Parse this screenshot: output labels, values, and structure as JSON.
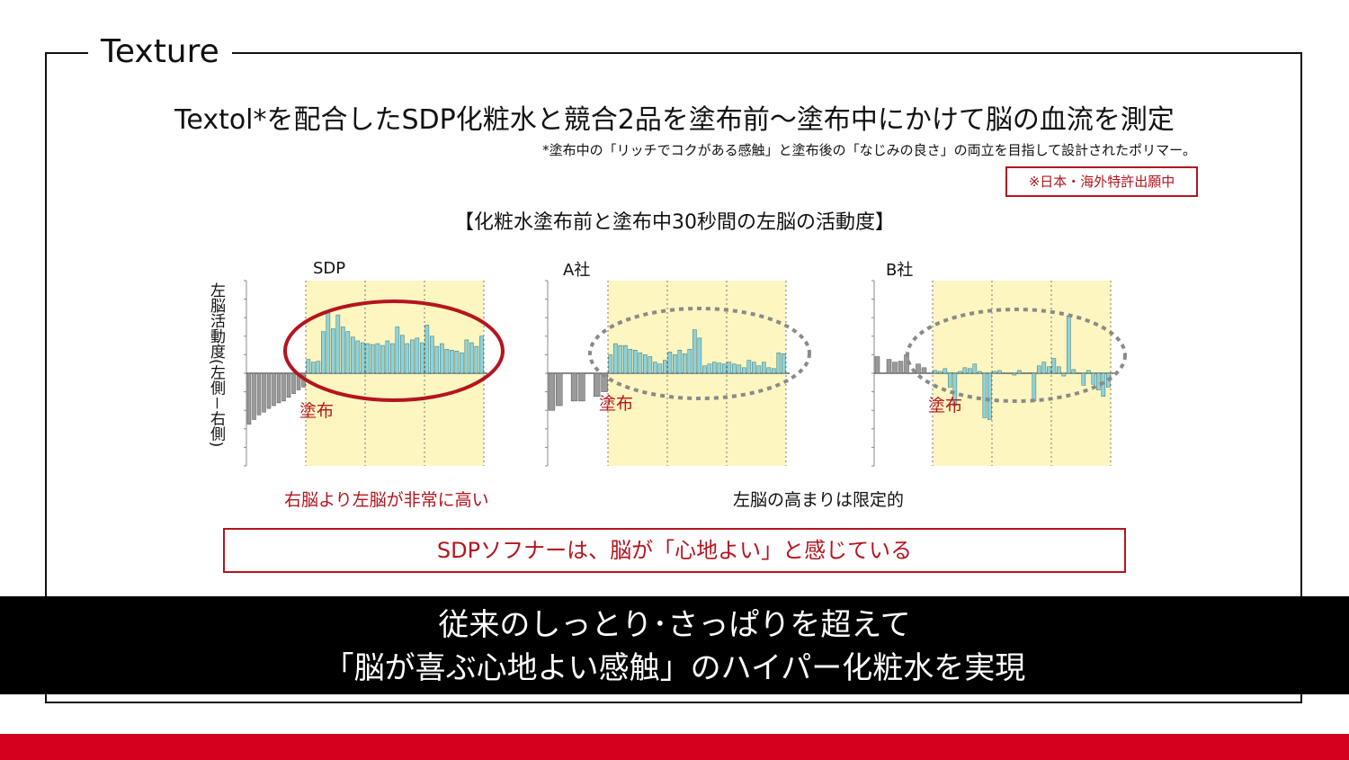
{
  "section_title": "Texture",
  "headline": "Textol*を配合したSDP化粧水と競合2品を塗布前～塗布中にかけて脳の血流を測定",
  "footnote": "*塗布中の「リッチでコクがある感触」と塗布後の「なじみの良さ」の両立を目指して設計されたポリマー。",
  "patent_badge": "※日本・海外特許出願中",
  "chart_title": "【化粧水塗布前と塗布中30秒間の左脳の活動度】",
  "y_axis_label": "左脳活動度(左側－右側)",
  "chart_data": {
    "type": "bar",
    "title": "【化粧水塗布前と塗布中30秒間の左脳の活動度】",
    "ylabel": "左脳活動度(左側－右側)",
    "ylim": [
      -10,
      10
    ],
    "grid": "vertical dotted lines",
    "highlight_label": "塗布",
    "panels": [
      {
        "name": "SDP",
        "apply_label": "塗布",
        "before": [
          -5.5,
          -5.0,
          -4.5,
          -4.2,
          -3.8,
          -3.5,
          -3.2,
          -3.0,
          -2.6,
          -2.2,
          -1.8,
          -1.5
        ],
        "during": [
          1.5,
          1.2,
          1.3,
          4.5,
          6.5,
          4.8,
          6.3,
          5.0,
          4.5,
          3.9,
          3.5,
          3.3,
          3.2,
          3.1,
          3.2,
          3.0,
          3.5,
          3.2,
          5.0,
          4.1,
          3.2,
          3.6,
          3.8,
          3.3,
          5.2,
          4.0,
          2.9,
          3.2,
          2.6,
          2.5,
          2.4,
          2.2,
          3.6,
          3.3,
          2.9,
          4.0
        ]
      },
      {
        "name": "A社",
        "apply_label": "塗布",
        "before": [
          -4.0,
          -3.5,
          0,
          -3.0,
          -3.0,
          0,
          -2.5,
          -2.0
        ],
        "during": [
          2.0,
          3.2,
          3.0,
          3.0,
          2.6,
          2.5,
          2.2,
          2.0,
          1.8,
          1.2,
          1.0,
          1.4,
          2.3,
          2.0,
          2.5,
          2.1,
          2.6,
          4.7,
          3.8,
          0.8,
          1.0,
          1.2,
          1.1,
          1.0,
          1.2,
          1.0,
          0.9,
          0.6,
          1.4,
          1.2,
          0.8,
          1.2,
          0.6,
          0.5,
          2.2,
          2.1
        ]
      },
      {
        "name": "B社",
        "apply_label": "塗布",
        "before": [
          1.8,
          0,
          1.5,
          1.2,
          1.3,
          2.0,
          0,
          1.0,
          0.6,
          0
        ],
        "during": [
          0.3,
          0.2,
          0.5,
          -1.5,
          -3.5,
          0.2,
          0.6,
          0.5,
          1.0,
          0.2,
          -4.8,
          -5.0,
          0.2,
          0.3,
          0,
          0,
          -0.2,
          0.3,
          0,
          0,
          -3.0,
          0.8,
          1.2,
          0.7,
          1.6,
          0.7,
          -0.3,
          6.2,
          0.4,
          0,
          -1.3,
          0.3,
          -1.2,
          -1.8,
          -2.5,
          -1.5
        ]
      }
    ]
  },
  "finding_sdp": "右脳より左脳が非常に高い",
  "finding_competitors": "左脳の高まりは限定的",
  "conclusion": "SDPソフナーは、脳が「心地よい」と感じている",
  "banner": {
    "line1": "従来のしっとり･さっぱりを超えて",
    "line2": "「脳が喜ぶ心地よい感触」のハイパー化粧水を実現"
  },
  "colors": {
    "accent_red": "#b5141f",
    "bar_before": "#9a9a9a",
    "bar_during": "#8fd3d8",
    "highlight": "#fdf6c0",
    "bottom_bar": "#d3001e"
  }
}
